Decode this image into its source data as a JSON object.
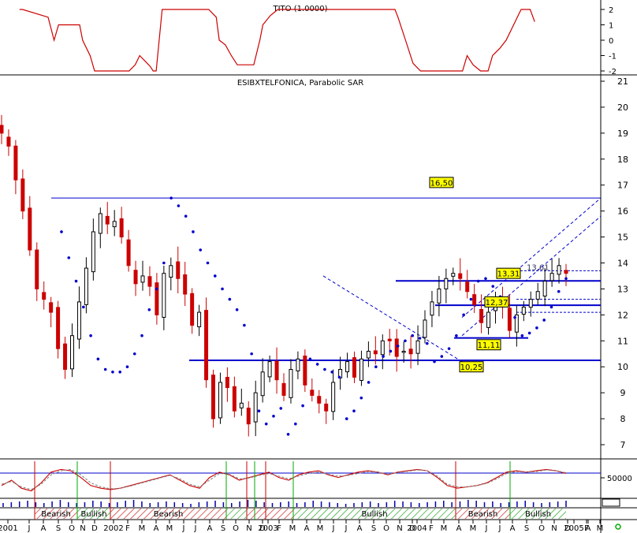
{
  "chart_data": [
    {
      "type": "line",
      "panel": "indicator",
      "title": "TITO (1.0000)",
      "ylim": [
        -2,
        2
      ],
      "y_ticks": [
        "2",
        "1",
        "0",
        "-1",
        "-2"
      ],
      "grid": false,
      "series": [
        {
          "color": "#cc0000",
          "t": [
            1.3,
            1.5,
            3.2,
            3.6,
            3.9,
            5.3,
            5.5,
            6.0,
            6.3,
            6.5,
            8.6,
            9.0,
            9.3,
            9.7,
            10.0,
            10.2,
            10.4,
            10.8,
            13.9,
            14.4,
            14.6,
            15.0,
            15.4,
            15.8,
            16.9,
            17.3,
            17.5,
            18.0,
            18.5,
            19.2,
            26.3,
            26.5,
            27.0,
            27.5,
            28.0,
            29.5,
            30.8,
            31.1,
            31.5,
            32.0,
            32.5,
            32.8,
            33.3,
            33.7,
            34.2,
            34.7,
            35.3,
            35.6
          ],
          "values": [
            2,
            2,
            1.5,
            0,
            1,
            1,
            0,
            -1,
            -2,
            -2,
            -2,
            -1.6,
            -1,
            -1.4,
            -1.7,
            -2,
            -2,
            2,
            2,
            1.5,
            0,
            -0.3,
            -1,
            -1.6,
            -1.6,
            0,
            1,
            1.6,
            2,
            2,
            2,
            1.5,
            0,
            -1.5,
            -2,
            -2,
            -2,
            -1,
            -1.6,
            -2,
            -2,
            -1,
            -0.5,
            0,
            1,
            2,
            2,
            1.2
          ]
        }
      ]
    },
    {
      "type": "candlestick",
      "panel": "price",
      "title": "ESIBXTELFONICA, Parabolic SAR",
      "ylim": [
        6.6,
        21.2
      ],
      "y_ticks": [
        "21",
        "20",
        "19",
        "18",
        "17",
        "16",
        "15",
        "14",
        "13",
        "12",
        "11",
        "10",
        "9",
        "8",
        "7"
      ],
      "grid": false,
      "up_color": "#000000",
      "down_color": "#cc0000",
      "sar_color": "#0000cc",
      "trend_color": "#0000cc",
      "close": [
        19.0,
        18.5,
        17.2,
        16.0,
        14.5,
        13.0,
        12.6,
        12.1,
        10.7,
        9.9,
        11.2,
        12.5,
        13.8,
        15.2,
        15.9,
        15.5,
        15.6,
        15.0,
        13.9,
        13.2,
        13.5,
        13.1,
        12.0,
        13.6,
        13.9,
        13.4,
        12.8,
        11.6,
        12.1,
        9.5,
        8.0,
        9.4,
        9.2,
        8.3,
        8.6,
        7.8,
        9.0,
        9.8,
        10.2,
        9.5,
        8.9,
        9.9,
        10.3,
        9.3,
        8.9,
        8.6,
        8.3,
        9.4,
        9.9,
        10.2,
        9.6,
        10.3,
        10.6,
        10.5,
        11.0,
        11.0,
        10.4,
        10.6,
        10.5,
        11.0,
        11.8,
        12.5,
        13.0,
        13.4,
        13.6,
        13.4,
        12.9,
        12.4,
        11.7,
        12.1,
        12.6,
        12.3,
        11.4,
        12.0,
        12.3,
        12.6,
        12.9,
        13.3,
        13.6,
        13.9,
        13.6
      ],
      "sar": [
        15.2,
        14.2,
        13.3,
        12.3,
        11.2,
        10.3,
        9.9,
        9.8,
        9.8,
        10.0,
        10.5,
        11.2,
        12.2,
        13.0,
        14.0,
        16.5,
        16.2,
        15.8,
        15.2,
        14.5,
        14.0,
        13.5,
        13.0,
        12.6,
        12.2,
        11.6,
        10.5,
        8.3,
        7.8,
        8.1,
        8.4,
        7.4,
        7.8,
        8.5,
        10.3,
        10.1,
        9.9,
        9.8,
        9.6,
        8.0,
        8.3,
        8.8,
        9.4,
        10.0,
        10.4,
        10.6,
        10.8,
        11.0,
        11.2,
        11.1,
        10.9,
        10.2,
        10.4,
        10.7,
        11.2,
        12.0,
        12.6,
        13.3,
        13.4,
        13.1,
        12.7,
        12.4,
        11.9,
        11.2,
        11.3,
        11.5,
        11.8,
        12.3,
        12.9,
        13.4
      ],
      "horizontal_levels": [
        {
          "value": 16.5,
          "label": "16,50",
          "label_y": 17.1
        },
        {
          "value": 10.25,
          "label": "10,25",
          "label_y": 10.0
        },
        {
          "value": 13.31,
          "label": "13,31",
          "label_y": 13.6
        },
        {
          "value": 12.37,
          "label": "12,37",
          "label_y": 12.5
        },
        {
          "value": 11.11,
          "label": "11,11",
          "label_y": 10.85
        }
      ],
      "partial_label": "13,61",
      "trend_lines": [
        {
          "from": [
            31.0,
            11.9
          ],
          "to": [
            36.0,
            16.5
          ],
          "dash": true
        },
        {
          "from": [
            31.0,
            11.2
          ],
          "to": [
            36.0,
            15.8
          ],
          "dash": true
        },
        {
          "from": [
            26.0,
            13.5
          ],
          "to": [
            31.0,
            10.2
          ],
          "dash": true
        }
      ],
      "channel_lines": [
        13.7,
        12.6,
        12.1
      ]
    },
    {
      "type": "line",
      "panel": "oscillator",
      "y_ticks": [
        "50000"
      ],
      "series": [
        {
          "name": "",
          "color": "#cc0000",
          "style": "solid",
          "values": [
            0.3,
            0.5,
            0.2,
            0.1,
            0.4,
            0.8,
            0.9,
            0.85,
            0.6,
            0.3,
            0.2,
            0.15,
            0.2,
            0.3,
            0.4,
            0.5,
            0.6,
            0.7,
            0.5,
            0.3,
            0.2,
            0.6,
            0.8,
            0.7,
            0.5,
            0.6,
            0.7,
            0.8,
            0.6,
            0.5,
            0.7,
            0.8,
            0.85,
            0.7,
            0.6,
            0.7,
            0.8,
            0.85,
            0.8,
            0.7,
            0.8,
            0.85,
            0.9,
            0.85,
            0.6,
            0.3,
            0.2,
            0.25,
            0.3,
            0.4,
            0.6,
            0.8,
            0.85,
            0.8,
            0.85,
            0.9,
            0.85,
            0.75
          ]
        },
        {
          "name": "",
          "color": "#888888",
          "style": "dashed",
          "values": [
            0.35,
            0.45,
            0.25,
            0.15,
            0.35,
            0.7,
            0.85,
            0.9,
            0.7,
            0.4,
            0.25,
            0.18,
            0.2,
            0.28,
            0.38,
            0.48,
            0.58,
            0.68,
            0.55,
            0.35,
            0.25,
            0.5,
            0.75,
            0.72,
            0.55,
            0.58,
            0.68,
            0.75,
            0.65,
            0.55,
            0.65,
            0.75,
            0.8,
            0.72,
            0.65,
            0.68,
            0.75,
            0.82,
            0.8,
            0.72,
            0.78,
            0.83,
            0.88,
            0.85,
            0.65,
            0.35,
            0.25,
            0.25,
            0.3,
            0.38,
            0.55,
            0.75,
            0.82,
            0.8,
            0.82,
            0.88,
            0.85,
            0.78
          ]
        }
      ]
    },
    {
      "type": "bar",
      "panel": "volume",
      "values": [
        0.5,
        0.6,
        0.7,
        0.8,
        0.6,
        0.5,
        0.7,
        0.9,
        0.6,
        0.5,
        0.6,
        0.8,
        0.7,
        0.5,
        0.6,
        0.8,
        0.9,
        0.7,
        0.5,
        0.6,
        0.7,
        0.6,
        0.5,
        0.4,
        0.6,
        0.7,
        0.8,
        0.6,
        0.5,
        0.7,
        0.9,
        0.8,
        0.6,
        0.5,
        0.6,
        0.7,
        0.5,
        0.6,
        0.8,
        0.7,
        0.6,
        0.5,
        0.4,
        0.5,
        0.6,
        0.7,
        0.5,
        0.6,
        0.8,
        0.7,
        0.6,
        0.5,
        0.6,
        0.7,
        0.8,
        0.6,
        0.7,
        0.9,
        0.8,
        0.6,
        0.7,
        0.5,
        0.6,
        0.7,
        0.8,
        0.6,
        0.5,
        0.6,
        0.7,
        0.8
      ]
    },
    {
      "type": "table",
      "panel": "regime",
      "regimes": [
        {
          "label": "Bearish",
          "t0": 1.0,
          "t1": 2.8,
          "kind": "bear"
        },
        {
          "label": "Bullish",
          "t0": 2.8,
          "t1": 3.9,
          "kind": "bull"
        },
        {
          "label": "Bearish",
          "t0": 3.9,
          "t1": 8.0,
          "kind": "bear"
        },
        {
          "label": "",
          "t0": 8.0,
          "t1": 8.9,
          "kind": "bull"
        },
        {
          "label": "",
          "t0": 8.9,
          "t1": 10.3,
          "kind": "bear"
        },
        {
          "label": "Bullish",
          "t0": 10.3,
          "t1": 16.2,
          "kind": "bull"
        },
        {
          "label": "Bearish",
          "t0": 16.2,
          "t1": 17.9,
          "kind": "bear"
        },
        {
          "label": "Bullish",
          "t0": 17.9,
          "t1": 20.0,
          "kind": "bull"
        }
      ]
    }
  ],
  "x_axis": {
    "ticks": [
      "2001",
      "J",
      "A",
      "S",
      "O",
      "N",
      "D",
      "2002",
      "F",
      "M",
      "A",
      "M",
      "J",
      "J",
      "A",
      "S",
      "O",
      "N",
      "D",
      "2003",
      "F",
      "M",
      "A",
      "M",
      "J",
      "J",
      "A",
      "S",
      "O",
      "N",
      "D",
      "2004",
      "F",
      "M",
      "A",
      "M",
      "J",
      "J",
      "A",
      "S",
      "O",
      "N",
      "D",
      "2005",
      "F",
      "M",
      "A"
    ]
  },
  "colors": {
    "axis": "#000000",
    "blue_line": "#0000cc",
    "green_marker": "#00aa00",
    "red_marker": "#cc0000",
    "label_bg": "#ffff00",
    "bull_hatch": "#33aa33",
    "bear_hatch": "#cc3333"
  },
  "status_icon": "green-circle-icon"
}
